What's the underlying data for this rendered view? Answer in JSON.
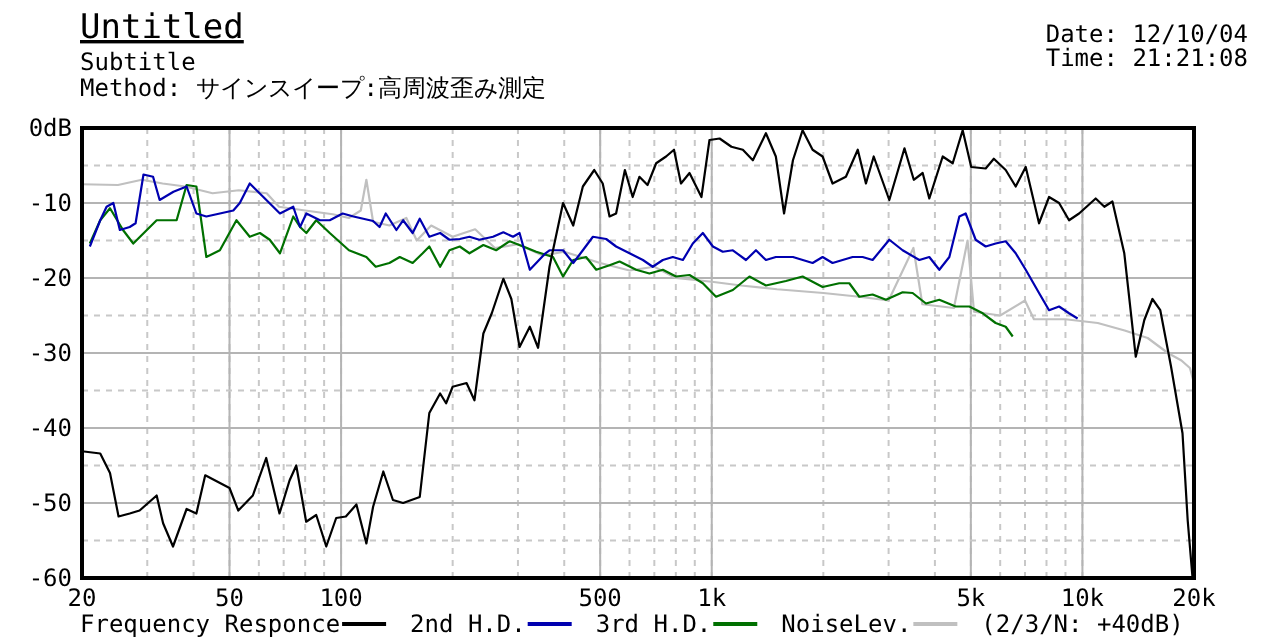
{
  "chart_data": {
    "type": "line",
    "title": "Untitled",
    "subtitle": "Subtitle",
    "annotations": [
      "Method:  サインスイープ:高周波歪み測定",
      "Date: 12/10/04",
      "Time: 21:21:08",
      "(2/3/N: +40dB)"
    ],
    "log": "x",
    "grid": true,
    "legend": "bottom",
    "xlim": [
      20,
      20000
    ],
    "ylim": [
      -60,
      0
    ],
    "xticks": [
      20,
      50,
      100,
      500,
      {
        "value": 1000,
        "label": "1k"
      },
      {
        "value": 5000,
        "label": "5k"
      },
      {
        "value": 10000,
        "label": "10k"
      },
      {
        "value": 20000,
        "label": "20k"
      }
    ],
    "yticks": [
      {
        "value": 0,
        "label": "0dB"
      },
      -10,
      -20,
      -30,
      -40,
      -50,
      -60
    ],
    "series": [
      {
        "name": "Frequency Responce",
        "color": "#000000",
        "x": [
          20,
          22.4,
          23.8,
          25.1,
          26.9,
          28.6,
          31.8,
          33.1,
          35.2,
          38.3,
          40.7,
          43,
          50,
          52.8,
          57.8,
          62.8,
          68.2,
          72.6,
          75.7,
          80.5,
          85.7,
          91.2,
          97,
          103,
          110,
          117,
          122,
          130,
          138,
          147,
          163,
          173,
          185,
          192,
          200,
          218,
          229,
          242,
          255,
          274,
          288,
          303,
          323,
          340,
          365,
          397,
          423,
          449,
          482,
          508,
          530,
          552,
          583,
          612,
          638,
          671,
          708,
          753,
          791,
          826,
          871,
          908,
          938,
          986,
          1050,
          1130,
          1213,
          1291,
          1400,
          1489,
          1567,
          1656,
          1758,
          1871,
          1991,
          2118,
          2301,
          2477,
          2606,
          2735,
          3013,
          3311,
          3508,
          3707,
          3863,
          4198,
          4467,
          4753,
          5012,
          5483,
          5768,
          6209,
          6607,
          7031,
          7638,
          8128,
          8650,
          9204,
          9795,
          10860,
          11460,
          12050,
          12970,
          13930,
          14690,
          15450,
          16220,
          17340,
          18620,
          19230,
          19820
        ],
        "values": [
          -43.1,
          -43.4,
          -46,
          -51.8,
          -51.4,
          -51,
          -49,
          -52.7,
          -55.8,
          -50.8,
          -51.4,
          -46.3,
          -48,
          -51,
          -49,
          -44,
          -51.4,
          -47,
          -45,
          -52.5,
          -51.6,
          -55.8,
          -52,
          -51.8,
          -50.2,
          -55.4,
          -50.5,
          -45.8,
          -49.6,
          -50,
          -49.2,
          -38,
          -35.4,
          -36.7,
          -34.5,
          -34,
          -36.3,
          -27.4,
          -24.7,
          -20.1,
          -22.8,
          -29.2,
          -26.5,
          -29.3,
          -18.5,
          -10,
          -13,
          -7.8,
          -5.6,
          -7.4,
          -11.8,
          -11.4,
          -5.6,
          -9.2,
          -6.5,
          -7.6,
          -4.7,
          -3.8,
          -2.9,
          -7.4,
          -6,
          -7.8,
          -9.2,
          -1.6,
          -1.4,
          -2.5,
          -2.9,
          -4.3,
          -0.7,
          -3.8,
          -11.4,
          -4.3,
          -0.3,
          -2.9,
          -3.8,
          -7.4,
          -6.5,
          -2.9,
          -7.4,
          -3.8,
          -9.6,
          -2.7,
          -6.9,
          -6,
          -9.4,
          -3.8,
          -4.7,
          -0.3,
          -5.2,
          -5.4,
          -4.1,
          -5.6,
          -7.8,
          -5.2,
          -12.7,
          -9.2,
          -10,
          -12.3,
          -11.4,
          -9.4,
          -10.5,
          -9.8,
          -16.7,
          -30.5,
          -25.6,
          -22.8,
          -24.3,
          -31.8,
          -40.7,
          -52.3,
          -60
        ]
      },
      {
        "name": "2nd H.D.",
        "color": "#0000b0",
        "x": [
          21,
          22.4,
          23.3,
          24.3,
          25.3,
          26.9,
          27.9,
          29.3,
          31.1,
          32.4,
          35.3,
          38.3,
          40.7,
          43.3,
          47.1,
          51.2,
          53.3,
          56.7,
          61.7,
          68.4,
          74.3,
          77.5,
          80.6,
          87.7,
          93.2,
          101,
          108,
          122,
          127,
          132,
          141,
          147,
          156,
          163,
          173,
          185,
          196,
          209,
          222,
          236,
          257,
          274,
          291,
          303,
          323,
          356,
          365,
          397,
          423,
          449,
          478,
          519,
          552,
          600,
          652,
          693,
          738,
          785,
          836,
          889,
          946,
          1007,
          1071,
          1140,
          1237,
          1316,
          1400,
          1489,
          1656,
          1871,
          1991,
          2118,
          2254,
          2399,
          2553,
          2716,
          3013,
          3273,
          3631,
          3863,
          4111,
          4375,
          4656,
          4842,
          5152,
          5483,
          5834,
          6209,
          6607,
          7031,
          7638,
          8128,
          8650,
          9204,
          9706
        ],
        "values": [
          -15.8,
          -12.3,
          -10.5,
          -10,
          -13.6,
          -13.2,
          -12.7,
          -6.2,
          -6.5,
          -9.6,
          -8.5,
          -7.8,
          -11.4,
          -11.8,
          -11.4,
          -11,
          -10,
          -7.4,
          -9.2,
          -11.4,
          -10.5,
          -13.2,
          -11.4,
          -12.3,
          -12.3,
          -11.4,
          -11.8,
          -12.4,
          -13.2,
          -11.4,
          -13.6,
          -12.3,
          -14,
          -12.1,
          -14.5,
          -14,
          -14.9,
          -14.8,
          -14.5,
          -14.9,
          -14.5,
          -13.9,
          -14.5,
          -14,
          -18.9,
          -16.7,
          -16.3,
          -16.3,
          -18,
          -16.3,
          -14.5,
          -14.8,
          -15.8,
          -16.7,
          -17.6,
          -18.5,
          -17.6,
          -17.2,
          -17.6,
          -15.4,
          -14,
          -15.8,
          -16.5,
          -16.3,
          -17.6,
          -16.3,
          -17.6,
          -17.2,
          -17.2,
          -18,
          -17.2,
          -18,
          -17.6,
          -17.2,
          -17.2,
          -17.6,
          -14.9,
          -16.3,
          -17.6,
          -17.2,
          -18.9,
          -17.2,
          -11.8,
          -11.4,
          -14.9,
          -15.8,
          -15.4,
          -15.1,
          -16.7,
          -18.9,
          -22,
          -24.3,
          -23.8,
          -24.7,
          -25.4
        ]
      },
      {
        "name": "3rd H.D.",
        "color": "#007000",
        "x": [
          21,
          22.4,
          23.8,
          25.8,
          27.5,
          31.8,
          36,
          38.3,
          40.7,
          43.3,
          47.1,
          52.2,
          56.7,
          60.4,
          64.2,
          68.4,
          74.3,
          77.5,
          80.6,
          85.7,
          93.2,
          105,
          117,
          124,
          135,
          144,
          156,
          166,
          173,
          185,
          196,
          209,
          222,
          242,
          262,
          285,
          310,
          336,
          373,
          397,
          423,
          458,
          488,
          530,
          564,
          625,
          679,
          738,
          801,
          871,
          946,
          1027,
          1140,
          1264,
          1400,
          1585,
          1758,
          1991,
          2208,
          2350,
          2500,
          2716,
          2951,
          3273,
          3483,
          3784,
          4111,
          4550,
          4955,
          5383,
          5834,
          6209,
          6486
        ],
        "values": [
          -15.4,
          -12.3,
          -10.7,
          -13.6,
          -15.4,
          -12.3,
          -12.3,
          -7.6,
          -7.8,
          -17.2,
          -16.3,
          -12.3,
          -14.5,
          -14,
          -14.9,
          -16.7,
          -11.8,
          -13.2,
          -14,
          -12.3,
          -14,
          -16.3,
          -17.2,
          -18.5,
          -18,
          -17.2,
          -18,
          -16.7,
          -15.8,
          -18.5,
          -16.3,
          -15.8,
          -16.7,
          -15.6,
          -16.3,
          -15.1,
          -15.8,
          -16.5,
          -17.2,
          -19.8,
          -17.6,
          -17.2,
          -18.9,
          -18.3,
          -17.8,
          -18.9,
          -19.4,
          -18.9,
          -19.8,
          -19.6,
          -20.7,
          -22.5,
          -21.6,
          -19.8,
          -21,
          -20.4,
          -19.8,
          -21.2,
          -20.7,
          -20.7,
          -22.5,
          -22.2,
          -22.9,
          -21.9,
          -22,
          -23.4,
          -22.9,
          -23.8,
          -23.8,
          -24.7,
          -26,
          -26.5,
          -27.8
        ]
      },
      {
        "name": "NoiseLev.",
        "color": "#c0c0c0",
        "x": [
          20,
          25,
          29,
          33,
          38,
          45,
          53,
          63,
          68,
          80,
          95,
          105,
          113,
          117,
          122,
          135,
          150,
          160,
          175,
          200,
          230,
          260,
          300,
          350,
          400,
          500,
          600,
          700,
          800,
          1000,
          1200,
          1500,
          2000,
          2500,
          3000,
          3500,
          3700,
          4500,
          4900,
          5100,
          6000,
          7000,
          7400,
          9000,
          11000,
          13000,
          15000,
          17000,
          18500,
          19500,
          20000
        ],
        "values": [
          -7.5,
          -7.6,
          -6.9,
          -7.4,
          -7.8,
          -8.7,
          -8.3,
          -8.7,
          -10.5,
          -11,
          -11.5,
          -12,
          -11,
          -6.9,
          -12.5,
          -13,
          -12,
          -15,
          -13,
          -14.5,
          -13.5,
          -16,
          -15.5,
          -17,
          -16.5,
          -18,
          -19,
          -18.5,
          -20,
          -20.5,
          -21,
          -21.5,
          -22,
          -22.5,
          -23,
          -16,
          -23.5,
          -24,
          -15,
          -24.5,
          -25,
          -23,
          -25.5,
          -25.5,
          -26,
          -27,
          -28,
          -30,
          -31,
          -32,
          -34
        ]
      }
    ]
  }
}
